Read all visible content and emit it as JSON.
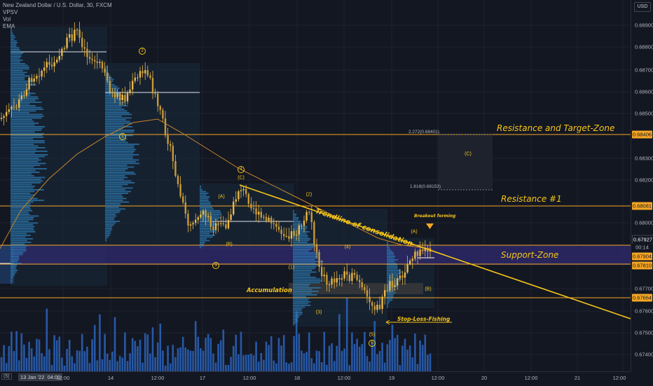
{
  "legend": {
    "symbol": "New Zealand Dollar / U.S. Dollar, 30, FXCM",
    "indicators": [
      "VPSV",
      "Vol",
      "EMA"
    ]
  },
  "price_axis": {
    "currency_button": "USD",
    "labels": [
      "0.68900",
      "0.68800",
      "0.68700",
      "0.68600",
      "0.68500",
      "0.68300",
      "0.68200",
      "0.68000",
      "0.67700",
      "0.67600",
      "0.67500",
      "0.67400"
    ],
    "tags": [
      {
        "text": "0.68406",
        "bg": "#f5a623",
        "fg": "#131722"
      },
      {
        "text": "0.68081",
        "bg": "#f5a623",
        "fg": "#131722"
      },
      {
        "text": "0.67927",
        "bg": "#131722",
        "fg": "#ffffff"
      },
      {
        "text": "00:14",
        "bg": "#131722",
        "fg": "#b2b5be"
      },
      {
        "text": "0.67904",
        "bg": "#f5a623",
        "fg": "#131722"
      },
      {
        "text": "0.67810",
        "bg": "#f5a623",
        "fg": "#131722"
      },
      {
        "text": "0.67664",
        "bg": "#f5a623",
        "fg": "#131722"
      }
    ]
  },
  "time_axis": {
    "corner": "(5)",
    "current_date": "13 Jan '22",
    "current_time": "04:00",
    "labels": [
      "12:00",
      "14",
      "12:00",
      "17",
      "12:00",
      "18",
      "12:00",
      "19",
      "12:00",
      "20",
      "12:00",
      "21",
      "12:00"
    ]
  },
  "annotations": {
    "resistance_target": "Resistance and Target-Zone",
    "resistance_1": "Resistance #1",
    "support_zone": "Support-Zone",
    "trendline": "Trendline of consolidation",
    "accumulation": "Accumulation",
    "stop_loss": "Stop-Loss-Fishing",
    "breakout": "Breakout forming",
    "fib_2272": "2.272(0.68401)",
    "fib_1618": "1.618(0.68153)"
  },
  "waves": [
    "2",
    "1",
    "4",
    "(C)",
    "(A)",
    "(B)",
    "3",
    "(1)",
    "(2)",
    "(3)",
    "(4)",
    "(5)",
    "5",
    "(A)",
    "(B)",
    "(C)"
  ],
  "colors": {
    "background": "#131722",
    "accent": "#f5c518",
    "line_orange": "#f5a623",
    "candle": "#e8b84a",
    "volume": "#2f6fd1",
    "support_zone": "#2b2866"
  }
}
